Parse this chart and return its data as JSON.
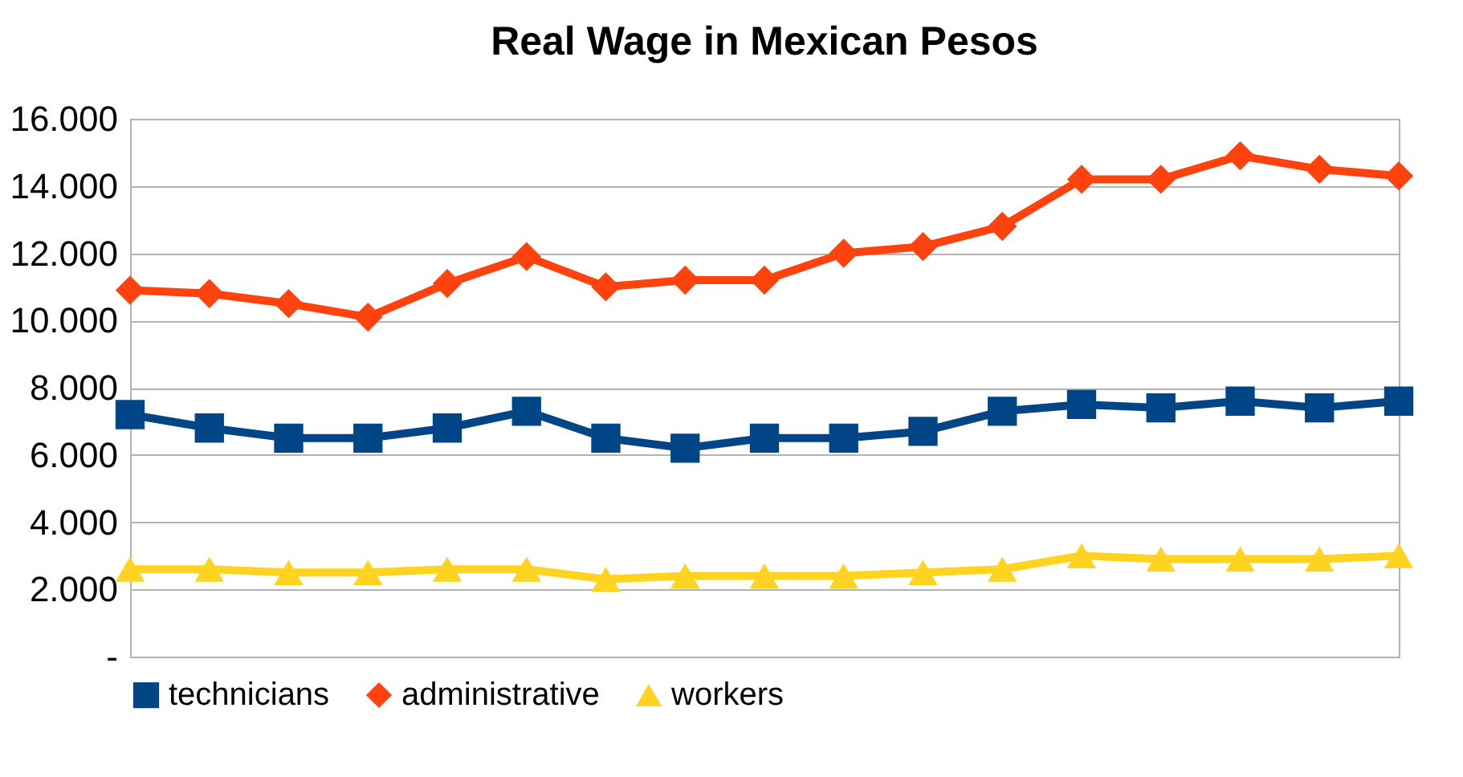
{
  "chart_data": {
    "type": "line",
    "title": "Real Wage in Mexican Pesos",
    "categories": [
      null,
      null,
      null,
      null,
      null,
      null,
      null,
      null,
      null,
      null,
      null,
      null,
      null,
      null,
      null,
      null,
      null
    ],
    "series": [
      {
        "name": "technicians",
        "color": "#004586",
        "marker": "square",
        "values": [
          7200,
          6800,
          6500,
          6500,
          6800,
          7300,
          6500,
          6200,
          6500,
          6500,
          6700,
          7300,
          7500,
          7400,
          7600,
          7400,
          7600
        ]
      },
      {
        "name": "administrative",
        "color": "#ff420e",
        "marker": "diamond",
        "values": [
          10900,
          10800,
          10500,
          10100,
          11100,
          11900,
          11000,
          11200,
          11200,
          12000,
          12200,
          12800,
          14200,
          14200,
          14900,
          14500,
          14300
        ]
      },
      {
        "name": "workers",
        "color": "#ffd320",
        "marker": "triangle",
        "values": [
          2600,
          2600,
          2500,
          2500,
          2600,
          2600,
          2300,
          2400,
          2400,
          2400,
          2500,
          2600,
          3000,
          2900,
          2900,
          2900,
          3000
        ]
      }
    ],
    "ylim": [
      0,
      16000
    ],
    "yticks": [
      {
        "value": 0,
        "label": "-"
      },
      {
        "value": 2000,
        "label": "2.000"
      },
      {
        "value": 4000,
        "label": "4.000"
      },
      {
        "value": 6000,
        "label": "6.000"
      },
      {
        "value": 8000,
        "label": "8.000"
      },
      {
        "value": 10000,
        "label": "10.000"
      },
      {
        "value": 12000,
        "label": "12.000"
      },
      {
        "value": 14000,
        "label": "14.000"
      },
      {
        "value": 16000,
        "label": "16.000"
      }
    ],
    "grid": "y",
    "legend": "bottom",
    "tick_labels": "y",
    "line_style": "solid"
  }
}
